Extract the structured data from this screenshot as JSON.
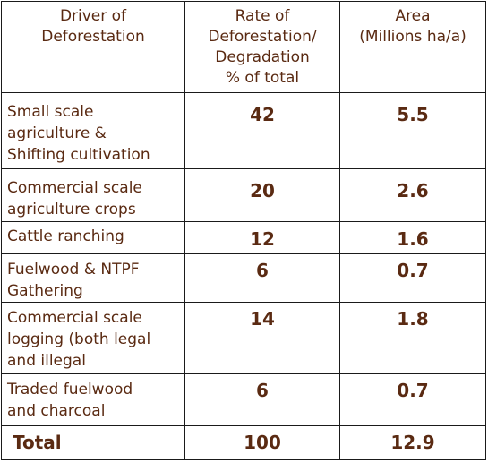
{
  "headers": {
    "driver": [
      "Driver of",
      "Deforestation"
    ],
    "rate": [
      "Rate of",
      "Deforestation/",
      "Degradation",
      "% of total"
    ],
    "area": [
      "Area",
      "(Millions ha/a)"
    ]
  },
  "rows": [
    {
      "driver": [
        "Small scale",
        "agriculture &",
        "Shifting cultivation"
      ],
      "rate": "42",
      "area": "5.5"
    },
    {
      "driver": [
        "Commercial scale",
        "agriculture  crops"
      ],
      "rate": "20",
      "area": "2.6"
    },
    {
      "driver": [
        "Cattle ranching"
      ],
      "rate": "12",
      "area": "1.6"
    },
    {
      "driver": [
        "Fuelwood & NTPF",
        "Gathering"
      ],
      "rate": "6",
      "area": "0.7"
    },
    {
      "driver": [
        "Commercial scale",
        "logging (both legal",
        "and illegal"
      ],
      "rate": "14",
      "area": "1.8"
    },
    {
      "driver": [
        "Traded fuelwood",
        "and charcoal"
      ],
      "rate": "6",
      "area": "0.7"
    }
  ],
  "total": {
    "label": "Total",
    "rate": "100",
    "area": "12.9"
  }
}
